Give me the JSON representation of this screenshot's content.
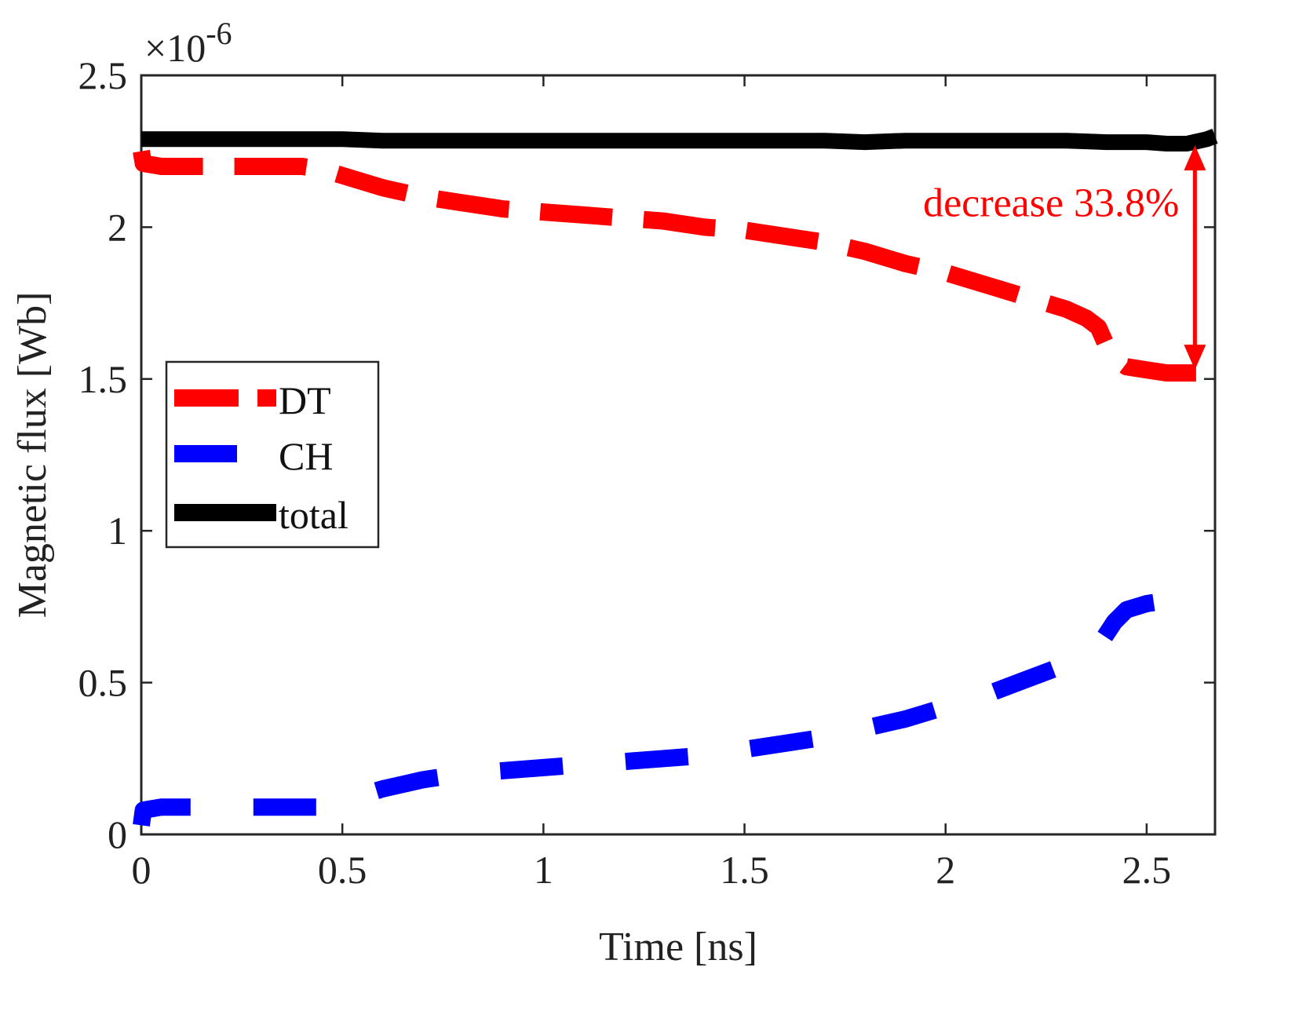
{
  "chart_data": {
    "type": "line",
    "title": "",
    "xlabel": "Time [ns]",
    "ylabel": "Magnetic flux [Wb]",
    "xlim": [
      0,
      2.67
    ],
    "ylim": [
      0,
      2.5
    ],
    "y_multiplier": "×10",
    "y_exponent": "-6",
    "grid": false,
    "legend_position": "center-left",
    "x_ticks": [
      {
        "value": 0,
        "label": "0"
      },
      {
        "value": 0.5,
        "label": "0.5"
      },
      {
        "value": 1,
        "label": "1"
      },
      {
        "value": 1.5,
        "label": "1.5"
      },
      {
        "value": 2,
        "label": "2"
      },
      {
        "value": 2.5,
        "label": "2.5"
      }
    ],
    "y_ticks": [
      {
        "value": 0,
        "label": "0"
      },
      {
        "value": 0.5,
        "label": "0.5"
      },
      {
        "value": 1,
        "label": "1"
      },
      {
        "value": 1.5,
        "label": "1.5"
      },
      {
        "value": 2,
        "label": "2"
      },
      {
        "value": 2.5,
        "label": "2.5"
      }
    ],
    "series": [
      {
        "name": "DT",
        "color": "#ff0000",
        "style": "dashed",
        "x": [
          0,
          0.005,
          0.05,
          0.1,
          0.2,
          0.3,
          0.4,
          0.45,
          0.5,
          0.6,
          0.7,
          0.8,
          0.9,
          1.0,
          1.1,
          1.2,
          1.3,
          1.4,
          1.5,
          1.6,
          1.7,
          1.8,
          1.9,
          2.0,
          2.1,
          2.2,
          2.3,
          2.35,
          2.38,
          2.4,
          2.42,
          2.45,
          2.5,
          2.55,
          2.6,
          2.67
        ],
        "values": [
          2.25,
          2.21,
          2.2,
          2.2,
          2.2,
          2.2,
          2.2,
          2.19,
          2.17,
          2.13,
          2.1,
          2.08,
          2.06,
          2.05,
          2.04,
          2.03,
          2.02,
          2.0,
          1.99,
          1.97,
          1.95,
          1.92,
          1.88,
          1.85,
          1.81,
          1.77,
          1.73,
          1.7,
          1.67,
          1.61,
          1.57,
          1.54,
          1.53,
          1.52,
          1.52,
          1.52
        ]
      },
      {
        "name": "CH",
        "color": "#0000ff",
        "style": "dashed",
        "x": [
          0,
          0.005,
          0.05,
          0.1,
          0.2,
          0.3,
          0.4,
          0.45,
          0.5,
          0.6,
          0.7,
          0.8,
          0.9,
          1.0,
          1.1,
          1.2,
          1.3,
          1.4,
          1.5,
          1.6,
          1.7,
          1.8,
          1.9,
          2.0,
          2.1,
          2.2,
          2.3,
          2.35,
          2.38,
          2.4,
          2.42,
          2.45,
          2.5,
          2.55,
          2.6,
          2.67
        ],
        "values": [
          0.03,
          0.08,
          0.09,
          0.09,
          0.09,
          0.09,
          0.09,
          0.09,
          0.11,
          0.15,
          0.18,
          0.2,
          0.21,
          0.22,
          0.23,
          0.24,
          0.25,
          0.26,
          0.28,
          0.3,
          0.32,
          0.35,
          0.38,
          0.42,
          0.46,
          0.51,
          0.56,
          0.59,
          0.62,
          0.66,
          0.7,
          0.74,
          0.76,
          0.77,
          0.77,
          0.77
        ]
      },
      {
        "name": "total",
        "color": "#000000",
        "style": "solid",
        "x": [
          0,
          0.1,
          0.2,
          0.3,
          0.4,
          0.5,
          0.6,
          0.7,
          0.8,
          0.9,
          1.0,
          1.1,
          1.2,
          1.3,
          1.4,
          1.5,
          1.6,
          1.7,
          1.8,
          1.9,
          2.0,
          2.1,
          2.2,
          2.3,
          2.4,
          2.5,
          2.55,
          2.6,
          2.65,
          2.67
        ],
        "values": [
          2.29,
          2.29,
          2.29,
          2.29,
          2.29,
          2.29,
          2.285,
          2.285,
          2.285,
          2.285,
          2.285,
          2.285,
          2.285,
          2.285,
          2.285,
          2.285,
          2.285,
          2.285,
          2.28,
          2.285,
          2.285,
          2.285,
          2.285,
          2.285,
          2.28,
          2.28,
          2.275,
          2.275,
          2.29,
          2.3
        ]
      }
    ],
    "annotations": [
      {
        "text": "decrease 33.8%",
        "color": "#ff0000",
        "arrow_x": 2.62,
        "arrow_from": 2.28,
        "arrow_to": 1.52
      }
    ]
  }
}
